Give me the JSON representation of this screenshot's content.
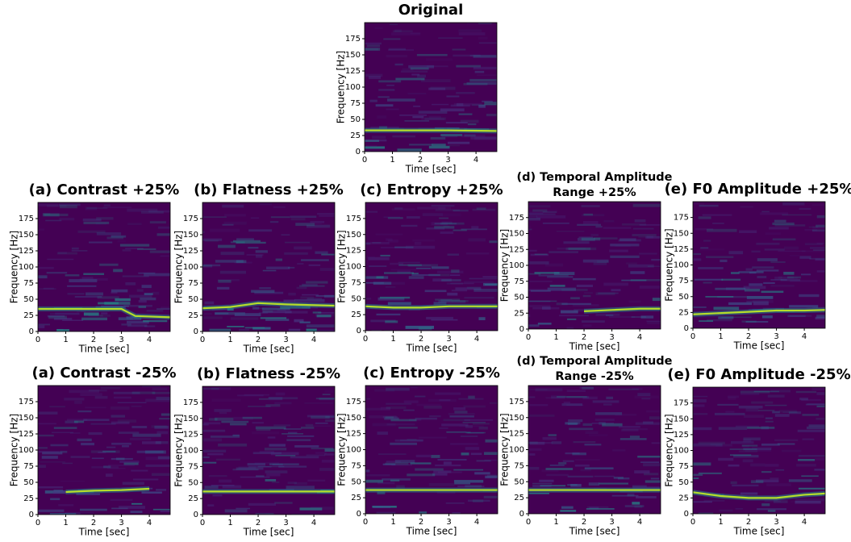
{
  "chart_data": [
    {
      "type": "spectrogram",
      "title": "Original",
      "x_label": "Time [sec]",
      "y_label": "Frequency [Hz]",
      "xlim": [
        0,
        4.75
      ],
      "ylim": [
        0,
        200
      ],
      "xticks": [
        0,
        1,
        2,
        3,
        4
      ],
      "yticks": [
        0,
        25,
        50,
        75,
        100,
        125,
        150,
        175
      ],
      "background": "#440154",
      "color": "#b5de2b",
      "x": [
        0,
        1,
        2,
        3,
        4.75
      ],
      "values": [
        33,
        33,
        33,
        33,
        32
      ]
    },
    {
      "type": "spectrogram",
      "title": "(a) Contrast +25%",
      "x_label": "Time [sec]",
      "y_label": "Frequency [Hz]",
      "xlim": [
        0,
        4.75
      ],
      "ylim": [
        0,
        200
      ],
      "xticks": [
        0,
        1,
        2,
        3,
        4
      ],
      "yticks": [
        0,
        25,
        50,
        75,
        100,
        125,
        150,
        175
      ],
      "background": "#440154",
      "color": "#b5de2b",
      "x": [
        0,
        1,
        2,
        3,
        3.5,
        4.75
      ],
      "values": [
        35,
        35,
        35,
        35,
        24,
        22
      ]
    },
    {
      "type": "spectrogram",
      "title": "(b) Flatness +25%",
      "x_label": "Time [sec]",
      "y_label": "Frequency [Hz]",
      "xlim": [
        0,
        4.75
      ],
      "ylim": [
        0,
        200
      ],
      "xticks": [
        0,
        1,
        2,
        3,
        4
      ],
      "yticks": [
        0,
        25,
        50,
        75,
        100,
        125,
        150,
        175
      ],
      "background": "#440154",
      "color": "#b5de2b",
      "x": [
        0,
        1,
        2,
        3,
        4.75
      ],
      "values": [
        36,
        38,
        44,
        42,
        40
      ]
    },
    {
      "type": "spectrogram",
      "title": "(c) Entropy +25%",
      "x_label": "Time [sec]",
      "y_label": "Frequency [Hz]",
      "xlim": [
        0,
        4.75
      ],
      "ylim": [
        0,
        200
      ],
      "xticks": [
        0,
        1,
        2,
        3,
        4
      ],
      "yticks": [
        0,
        25,
        50,
        75,
        100,
        125,
        150,
        175
      ],
      "background": "#440154",
      "color": "#b5de2b",
      "x": [
        0,
        1,
        2,
        3,
        4,
        4.75
      ],
      "values": [
        38,
        36,
        36,
        38,
        38,
        38
      ]
    },
    {
      "type": "spectrogram",
      "title": [
        "(d) Temporal Amplitude",
        "Range +25%"
      ],
      "x_label": "Time [sec]",
      "y_label": "Frequency [Hz]",
      "xlim": [
        0,
        4.75
      ],
      "ylim": [
        0,
        200
      ],
      "xticks": [
        0,
        1,
        2,
        3,
        4
      ],
      "yticks": [
        0,
        25,
        50,
        75,
        100,
        125,
        150,
        175
      ],
      "background": "#440154",
      "color": "#b5de2b",
      "x": [
        2,
        3,
        4,
        4.75
      ],
      "values": [
        28,
        30,
        32,
        32
      ]
    },
    {
      "type": "spectrogram",
      "title": "(e) F0 Amplitude +25%",
      "x_label": "Time [sec]",
      "y_label": "Frequency [Hz]",
      "xlim": [
        0,
        4.75
      ],
      "ylim": [
        0,
        200
      ],
      "xticks": [
        0,
        1,
        2,
        3,
        4
      ],
      "yticks": [
        0,
        25,
        50,
        75,
        100,
        125,
        150,
        175
      ],
      "background": "#440154",
      "color": "#b5de2b",
      "x": [
        0,
        2,
        3,
        4,
        4.75
      ],
      "values": [
        22,
        26,
        28,
        28,
        29
      ]
    },
    {
      "type": "spectrogram",
      "title": "(a) Contrast -25%",
      "x_label": "Time [sec]",
      "y_label": "Frequency [Hz]",
      "xlim": [
        0,
        4.75
      ],
      "ylim": [
        0,
        200
      ],
      "xticks": [
        0,
        1,
        2,
        3,
        4
      ],
      "yticks": [
        0,
        25,
        50,
        75,
        100,
        125,
        150,
        175
      ],
      "background": "#440154",
      "color": "#b5de2b",
      "x": [
        1,
        2,
        3,
        4
      ],
      "values": [
        35,
        37,
        38,
        40
      ]
    },
    {
      "type": "spectrogram",
      "title": "(b) Flatness -25%",
      "x_label": "Time [sec]",
      "y_label": "Frequency [Hz]",
      "xlim": [
        0,
        4.75
      ],
      "ylim": [
        0,
        200
      ],
      "xticks": [
        0,
        1,
        2,
        3,
        4
      ],
      "yticks": [
        0,
        25,
        50,
        75,
        100,
        125,
        150,
        175
      ],
      "background": "#440154",
      "color": "#b5de2b",
      "x": [
        0,
        1,
        2,
        3,
        4,
        4.75
      ],
      "values": [
        36,
        36,
        36,
        36,
        36,
        36
      ]
    },
    {
      "type": "spectrogram",
      "title": "(c) Entropy -25%",
      "x_label": "Time [sec]",
      "y_label": "Frequency [Hz]",
      "xlim": [
        0,
        4.75
      ],
      "ylim": [
        0,
        200
      ],
      "xticks": [
        0,
        1,
        2,
        3,
        4
      ],
      "yticks": [
        0,
        25,
        50,
        75,
        100,
        125,
        150,
        175
      ],
      "background": "#440154",
      "color": "#b5de2b",
      "x": [
        0,
        1,
        2,
        3,
        4,
        4.75
      ],
      "values": [
        37,
        37,
        37,
        37,
        37,
        37
      ]
    },
    {
      "type": "spectrogram",
      "title": [
        "(d) Temporal Amplitude",
        "Range -25%"
      ],
      "x_label": "Time [sec]",
      "y_label": "Frequency [Hz]",
      "xlim": [
        0,
        4.75
      ],
      "ylim": [
        0,
        200
      ],
      "xticks": [
        0,
        1,
        2,
        3,
        4
      ],
      "yticks": [
        0,
        25,
        50,
        75,
        100,
        125,
        150,
        175
      ],
      "background": "#440154",
      "color": "#b5de2b",
      "x": [
        0,
        1,
        2,
        3,
        4,
        4.75
      ],
      "values": [
        37,
        37,
        37,
        37,
        37,
        37
      ]
    },
    {
      "type": "spectrogram",
      "title": "(e) F0 Amplitude -25%",
      "x_label": "Time [sec]",
      "y_label": "Frequency [Hz]",
      "xlim": [
        0,
        4.75
      ],
      "ylim": [
        0,
        200
      ],
      "xticks": [
        0,
        1,
        2,
        3,
        4
      ],
      "yticks": [
        0,
        25,
        50,
        75,
        100,
        125,
        150,
        175
      ],
      "background": "#440154",
      "color": "#b5de2b",
      "x": [
        0,
        1,
        2,
        3,
        4,
        4.75
      ],
      "values": [
        34,
        28,
        25,
        25,
        30,
        32
      ]
    }
  ]
}
